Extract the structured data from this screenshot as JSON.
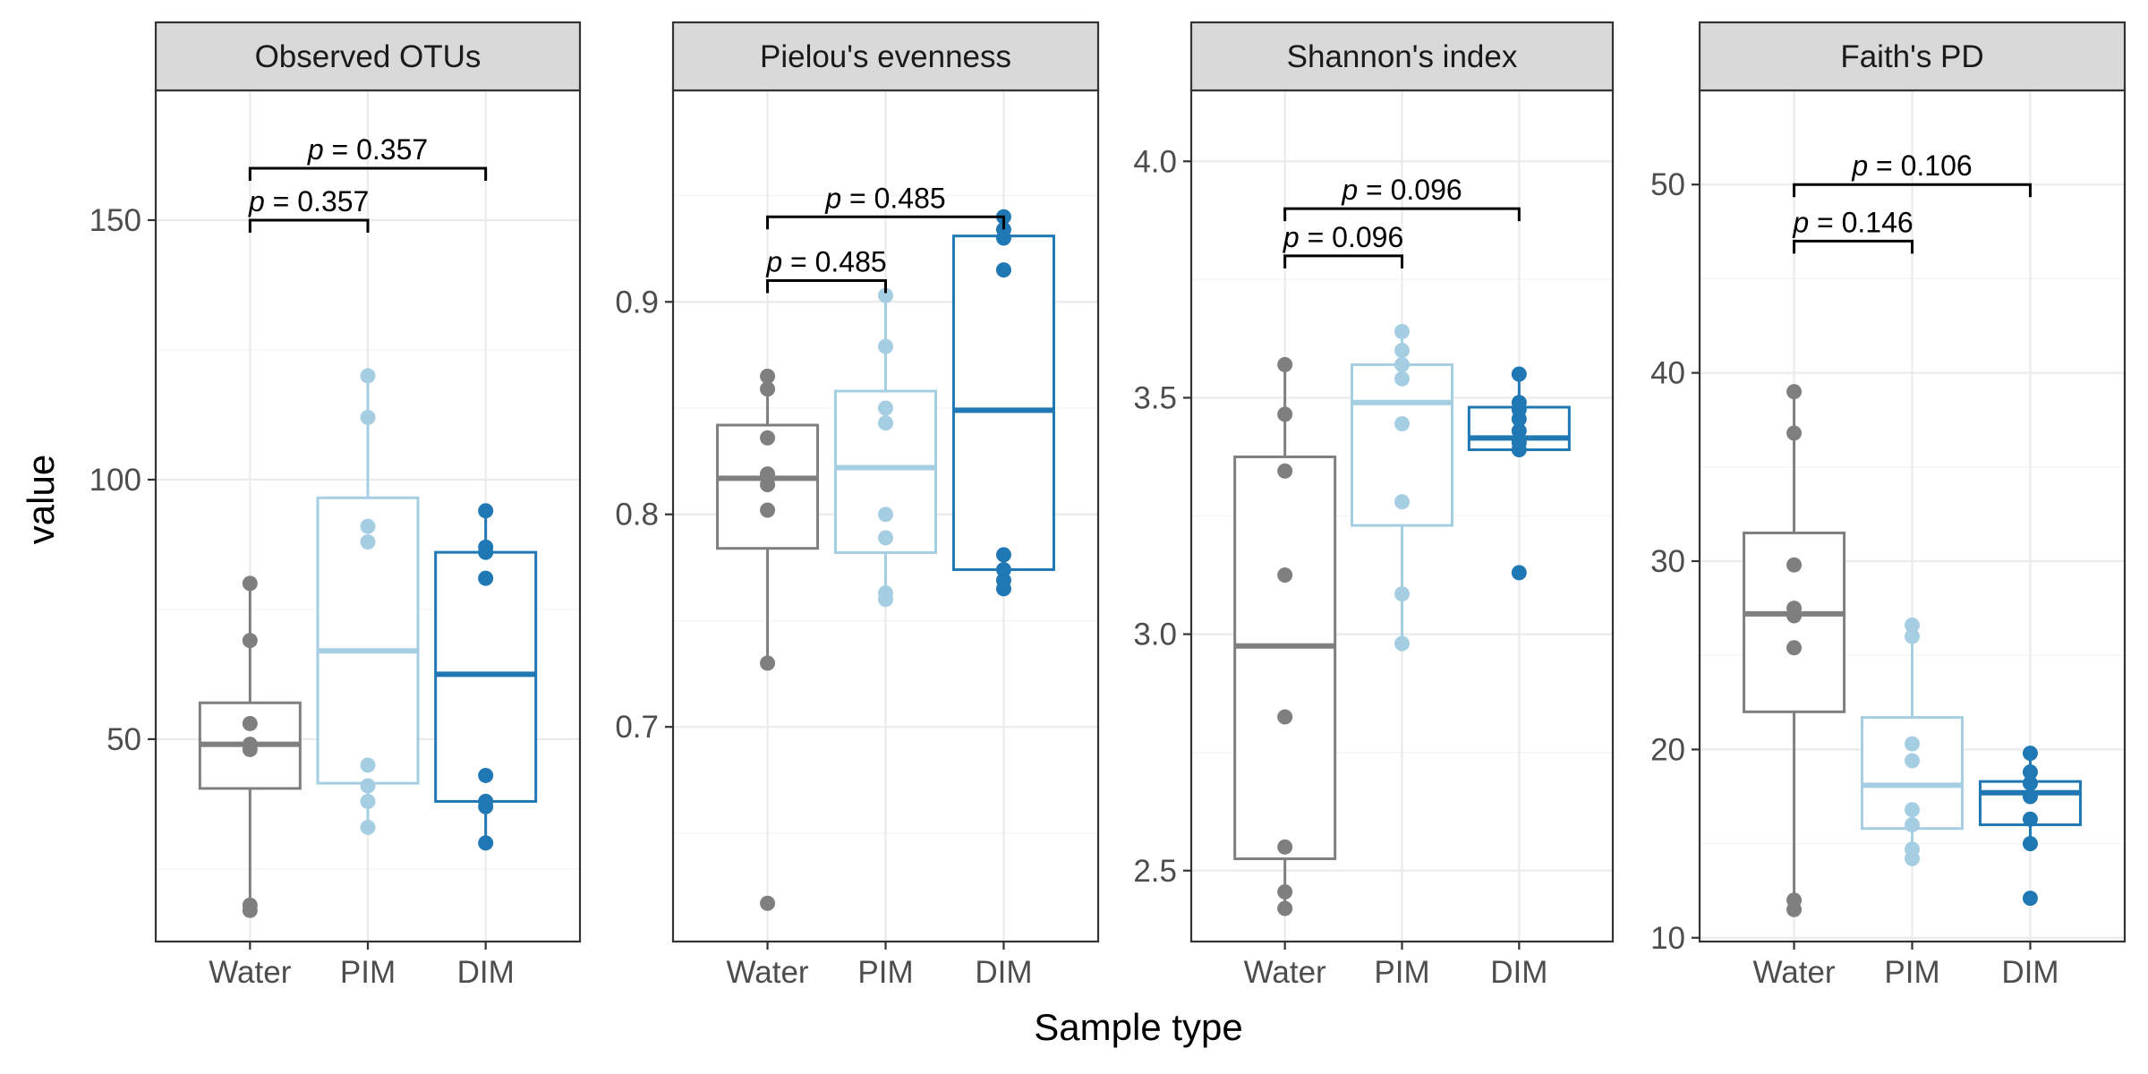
{
  "figure": {
    "xlabel": "Sample type",
    "ylabel": "value"
  },
  "colors": {
    "Water": "#7f7f7f",
    "PIM": "#a6cee3",
    "DIM": "#1f78b4",
    "strip_fill": "#d9d9d9",
    "grid_major": "#ebebeb",
    "grid_minor": "#f5f5f5",
    "axis_text": "#4d4d4d"
  },
  "chart_data": [
    {
      "type": "box",
      "title": "Observed OTUs",
      "categories": [
        "Water",
        "PIM",
        "DIM"
      ],
      "ylim": [
        11,
        175
      ],
      "yticks": [
        50,
        100,
        150
      ],
      "ytick_labels": [
        "50",
        "100",
        "150"
      ],
      "boxes": [
        {
          "group": "Water",
          "min": 17,
          "q1": 40.5,
          "median": 49,
          "q3": 57,
          "max": 80
        },
        {
          "group": "PIM",
          "min": 33,
          "q1": 41.5,
          "median": 67,
          "q3": 96.5,
          "max": 120
        },
        {
          "group": "DIM",
          "min": 30,
          "q1": 38,
          "median": 62.5,
          "q3": 86,
          "max": 94
        }
      ],
      "points": [
        {
          "group": "Water",
          "values": [
            17,
            18,
            48,
            49,
            53,
            69,
            80
          ]
        },
        {
          "group": "PIM",
          "values": [
            33,
            38,
            41,
            45,
            88,
            91,
            112,
            120
          ]
        },
        {
          "group": "DIM",
          "values": [
            30,
            37,
            38,
            43,
            81,
            86,
            87,
            94
          ]
        }
      ],
      "annotations": [
        {
          "from": "Water",
          "to": "PIM",
          "y": 150,
          "label": "p = 0.357"
        },
        {
          "from": "Water",
          "to": "DIM",
          "y": 160,
          "label": "p = 0.357"
        }
      ]
    },
    {
      "type": "box",
      "title": "Pielou's evenness",
      "categories": [
        "Water",
        "PIM",
        "DIM"
      ],
      "ylim": [
        0.599,
        0.9995
      ],
      "yticks": [
        0.7,
        0.8,
        0.9
      ],
      "ytick_labels": [
        "0.7",
        "0.8",
        "0.9"
      ],
      "boxes": [
        {
          "group": "Water",
          "min": 0.73,
          "q1": 0.784,
          "median": 0.817,
          "q3": 0.842,
          "max": 0.865
        },
        {
          "group": "PIM",
          "min": 0.76,
          "q1": 0.782,
          "median": 0.822,
          "q3": 0.858,
          "max": 0.903
        },
        {
          "group": "DIM",
          "min": 0.765,
          "q1": 0.774,
          "median": 0.849,
          "q3": 0.931,
          "max": 0.94
        }
      ],
      "points": [
        {
          "group": "Water",
          "values": [
            0.617,
            0.73,
            0.802,
            0.814,
            0.819,
            0.836,
            0.859,
            0.865
          ]
        },
        {
          "group": "PIM",
          "values": [
            0.76,
            0.763,
            0.789,
            0.8,
            0.843,
            0.85,
            0.879,
            0.903
          ]
        },
        {
          "group": "DIM",
          "values": [
            0.765,
            0.769,
            0.774,
            0.781,
            0.915,
            0.93,
            0.934,
            0.94
          ]
        }
      ],
      "annotations": [
        {
          "from": "Water",
          "to": "PIM",
          "y": 0.91,
          "label": "p = 0.485"
        },
        {
          "from": "Water",
          "to": "DIM",
          "y": 0.94,
          "label": "p = 0.485"
        }
      ]
    },
    {
      "type": "box",
      "title": "Shannon's index",
      "categories": [
        "Water",
        "PIM",
        "DIM"
      ],
      "ylim": [
        2.35,
        4.15
      ],
      "yticks": [
        2.5,
        3.0,
        3.5,
        4.0
      ],
      "ytick_labels": [
        "2.5",
        "3.0",
        "3.5",
        "4.0"
      ],
      "boxes": [
        {
          "group": "Water",
          "min": 2.42,
          "q1": 2.525,
          "median": 2.975,
          "q3": 3.375,
          "max": 3.57
        },
        {
          "group": "PIM",
          "min": 2.98,
          "q1": 3.23,
          "median": 3.49,
          "q3": 3.57,
          "max": 3.64
        },
        {
          "group": "DIM",
          "min": 3.39,
          "q1": 3.39,
          "median": 3.415,
          "q3": 3.48,
          "max": 3.55
        }
      ],
      "points": [
        {
          "group": "Water",
          "values": [
            2.42,
            2.455,
            2.55,
            2.825,
            3.125,
            3.345,
            3.465,
            3.57
          ]
        },
        {
          "group": "PIM",
          "values": [
            2.98,
            3.085,
            3.28,
            3.445,
            3.54,
            3.57,
            3.6,
            3.64
          ]
        },
        {
          "group": "DIM",
          "values": [
            3.13,
            3.39,
            3.405,
            3.43,
            3.455,
            3.475,
            3.49,
            3.55
          ]
        }
      ],
      "annotations": [
        {
          "from": "Water",
          "to": "PIM",
          "y": 3.8,
          "label": "p = 0.096"
        },
        {
          "from": "Water",
          "to": "DIM",
          "y": 3.9,
          "label": "p = 0.096"
        }
      ]
    },
    {
      "type": "box",
      "title": "Faith's PD",
      "categories": [
        "Water",
        "PIM",
        "DIM"
      ],
      "ylim": [
        9.8,
        55
      ],
      "yticks": [
        10,
        20,
        30,
        40,
        50
      ],
      "ytick_labels": [
        "10",
        "20",
        "30",
        "40",
        "50"
      ],
      "boxes": [
        {
          "group": "Water",
          "min": 11.5,
          "q1": 22,
          "median": 27.2,
          "q3": 31.5,
          "max": 39
        },
        {
          "group": "PIM",
          "min": 14.2,
          "q1": 15.8,
          "median": 18.1,
          "q3": 21.7,
          "max": 26.6
        },
        {
          "group": "DIM",
          "min": 15,
          "q1": 16,
          "median": 17.7,
          "q3": 18.3,
          "max": 19.8
        }
      ],
      "points": [
        {
          "group": "Water",
          "values": [
            11.5,
            12,
            25.4,
            27.1,
            27.5,
            29.8,
            36.8,
            39
          ]
        },
        {
          "group": "PIM",
          "values": [
            14.2,
            14.7,
            16,
            16.8,
            19.4,
            20.3,
            26,
            26.6
          ]
        },
        {
          "group": "DIM",
          "values": [
            12.1,
            15,
            16.3,
            17.5,
            18.2,
            18.8,
            19.8
          ]
        }
      ],
      "annotations": [
        {
          "from": "Water",
          "to": "PIM",
          "y": 47,
          "label": "p = 0.146"
        },
        {
          "from": "Water",
          "to": "DIM",
          "y": 50,
          "label": "p = 0.106"
        }
      ]
    }
  ]
}
